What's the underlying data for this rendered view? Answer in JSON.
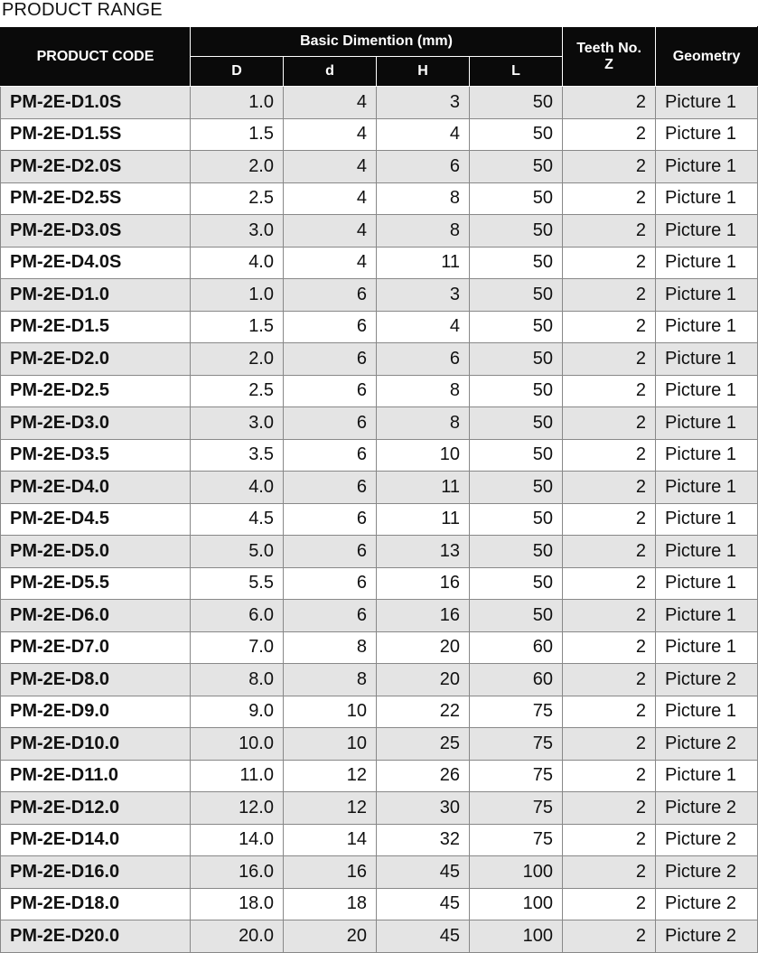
{
  "title": "PRODUCT RANGE",
  "headers": {
    "product_code": "PRODUCT CODE",
    "basic_dimension": "Basic Dimention (mm)",
    "D": "D",
    "d": "d",
    "H": "H",
    "L": "L",
    "teeth_line1": "Teeth No.",
    "teeth_line2": "Z",
    "geometry": "Geometry"
  },
  "rows": [
    {
      "code": "PM-2E-D1.0S",
      "D": "1.0",
      "d": "4",
      "H": "3",
      "L": "50",
      "Z": "2",
      "geometry": "Picture 1"
    },
    {
      "code": "PM-2E-D1.5S",
      "D": "1.5",
      "d": "4",
      "H": "4",
      "L": "50",
      "Z": "2",
      "geometry": "Picture 1"
    },
    {
      "code": "PM-2E-D2.0S",
      "D": "2.0",
      "d": "4",
      "H": "6",
      "L": "50",
      "Z": "2",
      "geometry": "Picture 1"
    },
    {
      "code": "PM-2E-D2.5S",
      "D": "2.5",
      "d": "4",
      "H": "8",
      "L": "50",
      "Z": "2",
      "geometry": "Picture 1"
    },
    {
      "code": "PM-2E-D3.0S",
      "D": "3.0",
      "d": "4",
      "H": "8",
      "L": "50",
      "Z": "2",
      "geometry": "Picture 1"
    },
    {
      "code": "PM-2E-D4.0S",
      "D": "4.0",
      "d": "4",
      "H": "11",
      "L": "50",
      "Z": "2",
      "geometry": "Picture 1"
    },
    {
      "code": "PM-2E-D1.0",
      "D": "1.0",
      "d": "6",
      "H": "3",
      "L": "50",
      "Z": "2",
      "geometry": "Picture 1"
    },
    {
      "code": "PM-2E-D1.5",
      "D": "1.5",
      "d": "6",
      "H": "4",
      "L": "50",
      "Z": "2",
      "geometry": "Picture 1"
    },
    {
      "code": "PM-2E-D2.0",
      "D": "2.0",
      "d": "6",
      "H": "6",
      "L": "50",
      "Z": "2",
      "geometry": "Picture 1"
    },
    {
      "code": "PM-2E-D2.5",
      "D": "2.5",
      "d": "6",
      "H": "8",
      "L": "50",
      "Z": "2",
      "geometry": "Picture 1"
    },
    {
      "code": "PM-2E-D3.0",
      "D": "3.0",
      "d": "6",
      "H": "8",
      "L": "50",
      "Z": "2",
      "geometry": "Picture 1"
    },
    {
      "code": "PM-2E-D3.5",
      "D": "3.5",
      "d": "6",
      "H": "10",
      "L": "50",
      "Z": "2",
      "geometry": "Picture 1"
    },
    {
      "code": "PM-2E-D4.0",
      "D": "4.0",
      "d": "6",
      "H": "11",
      "L": "50",
      "Z": "2",
      "geometry": "Picture 1"
    },
    {
      "code": "PM-2E-D4.5",
      "D": "4.5",
      "d": "6",
      "H": "11",
      "L": "50",
      "Z": "2",
      "geometry": "Picture 1"
    },
    {
      "code": "PM-2E-D5.0",
      "D": "5.0",
      "d": "6",
      "H": "13",
      "L": "50",
      "Z": "2",
      "geometry": "Picture 1"
    },
    {
      "code": "PM-2E-D5.5",
      "D": "5.5",
      "d": "6",
      "H": "16",
      "L": "50",
      "Z": "2",
      "geometry": "Picture 1"
    },
    {
      "code": "PM-2E-D6.0",
      "D": "6.0",
      "d": "6",
      "H": "16",
      "L": "50",
      "Z": "2",
      "geometry": "Picture 1"
    },
    {
      "code": "PM-2E-D7.0",
      "D": "7.0",
      "d": "8",
      "H": "20",
      "L": "60",
      "Z": "2",
      "geometry": "Picture 1"
    },
    {
      "code": "PM-2E-D8.0",
      "D": "8.0",
      "d": "8",
      "H": "20",
      "L": "60",
      "Z": "2",
      "geometry": "Picture 2"
    },
    {
      "code": "PM-2E-D9.0",
      "D": "9.0",
      "d": "10",
      "H": "22",
      "L": "75",
      "Z": "2",
      "geometry": "Picture 1"
    },
    {
      "code": "PM-2E-D10.0",
      "D": "10.0",
      "d": "10",
      "H": "25",
      "L": "75",
      "Z": "2",
      "geometry": "Picture 2"
    },
    {
      "code": "PM-2E-D11.0",
      "D": "11.0",
      "d": "12",
      "H": "26",
      "L": "75",
      "Z": "2",
      "geometry": "Picture 1"
    },
    {
      "code": "PM-2E-D12.0",
      "D": "12.0",
      "d": "12",
      "H": "30",
      "L": "75",
      "Z": "2",
      "geometry": "Picture 2"
    },
    {
      "code": "PM-2E-D14.0",
      "D": "14.0",
      "d": "14",
      "H": "32",
      "L": "75",
      "Z": "2",
      "geometry": "Picture 2"
    },
    {
      "code": "PM-2E-D16.0",
      "D": "16.0",
      "d": "16",
      "H": "45",
      "L": "100",
      "Z": "2",
      "geometry": "Picture 2"
    },
    {
      "code": "PM-2E-D18.0",
      "D": "18.0",
      "d": "18",
      "H": "45",
      "L": "100",
      "Z": "2",
      "geometry": "Picture 2"
    },
    {
      "code": "PM-2E-D20.0",
      "D": "20.0",
      "d": "20",
      "H": "45",
      "L": "100",
      "Z": "2",
      "geometry": "Picture 2"
    }
  ]
}
